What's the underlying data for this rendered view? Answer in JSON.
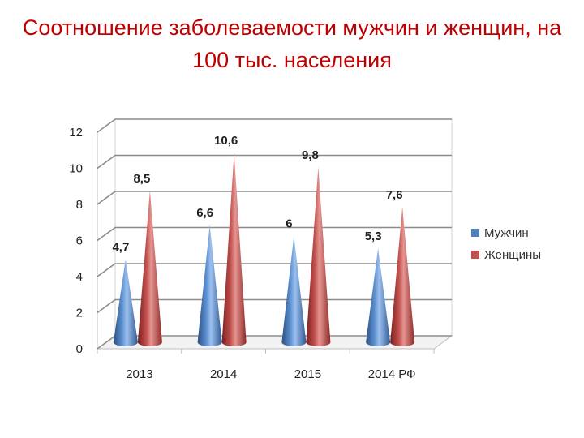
{
  "title": "Соотношение заболеваемости мужчин и женщин, на 100 тыс. населения",
  "chart_data": {
    "type": "bar",
    "bar_shape": "cone",
    "title": "Соотношение заболеваемости мужчин и женщин, на 100 тыс. населения",
    "categories": [
      "2013",
      "2014",
      "2015",
      "2014 РФ"
    ],
    "series": [
      {
        "name": "Мужчин",
        "values": [
          4.7,
          6.6,
          6,
          5.3
        ],
        "labels": [
          "4,7",
          "6,6",
          "6",
          "5,3"
        ],
        "color": "#4f81bd"
      },
      {
        "name": "Женщины",
        "values": [
          8.5,
          10.6,
          9.8,
          7.6
        ],
        "labels": [
          "8,5",
          "10,6",
          "9,8",
          "7,6"
        ],
        "color": "#c0504d"
      }
    ],
    "yticks": [
      "0",
      "2",
      "4",
      "6",
      "8",
      "10",
      "12"
    ],
    "ylim": [
      0,
      12
    ],
    "grid": true,
    "legend": "right"
  }
}
